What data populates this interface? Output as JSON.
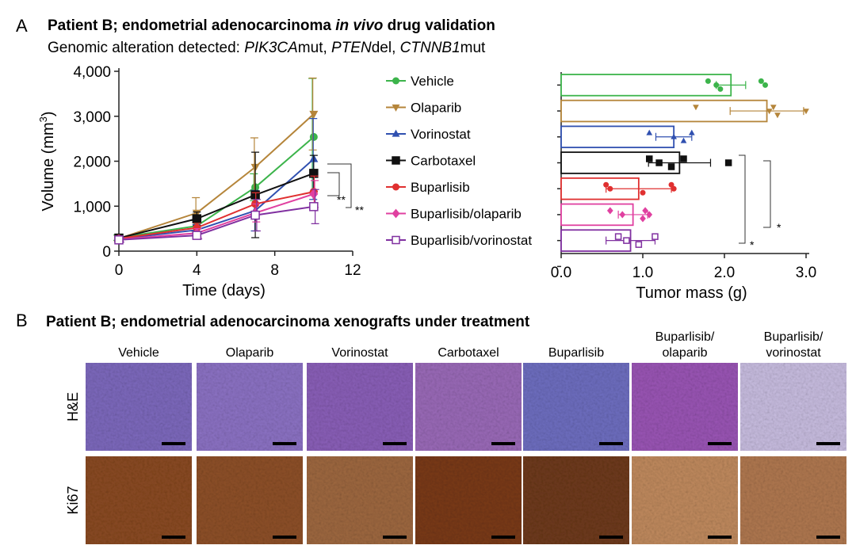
{
  "panel_a": {
    "label": "A",
    "title_parts": [
      "Patient B; endometrial adenocarcinoma ",
      "in vivo",
      " drug validation"
    ],
    "subtitle_parts": [
      "Genomic alteration detected: ",
      "PIK3CA",
      "mut, ",
      "PTEN",
      "del, ",
      "CTNNB1",
      "mut"
    ]
  },
  "chart_data": [
    {
      "type": "line",
      "x": [
        0,
        4,
        7,
        10
      ],
      "xlim": [
        0,
        12
      ],
      "xticks": [
        0,
        4,
        8,
        12
      ],
      "ylim": [
        0,
        4000
      ],
      "yticks": [
        0,
        {
          "value": 1000,
          "label": "1,000"
        },
        {
          "value": 2000,
          "label": "2,000"
        },
        {
          "value": 3000,
          "label": "3,000"
        },
        {
          "value": 4000,
          "label": "4,000"
        }
      ],
      "xlabel": "Time (days)",
      "ylabel_parts": [
        "Volume (mm",
        "3",
        ")"
      ],
      "annotations": [
        "**",
        "**"
      ],
      "series": [
        {
          "name": "Vehicle",
          "color": "#3cb44b",
          "marker": "circle",
          "values": [
            300,
            560,
            1420,
            2540
          ],
          "errors": [
            60,
            120,
            300,
            1300
          ]
        },
        {
          "name": "Olaparib",
          "color": "#b5853a",
          "marker": "tri-down",
          "values": [
            280,
            850,
            1870,
            3050
          ],
          "errors": [
            60,
            340,
            650,
            800
          ]
        },
        {
          "name": "Vorinostat",
          "color": "#3050b0",
          "marker": "tri-up",
          "values": [
            270,
            470,
            900,
            2050
          ],
          "errors": [
            50,
            120,
            450,
            900
          ]
        },
        {
          "name": "Carbotaxel",
          "color": "#111111",
          "marker": "square",
          "values": [
            290,
            720,
            1250,
            1730
          ],
          "errors": [
            50,
            150,
            950,
            400
          ]
        },
        {
          "name": "Buparlisib",
          "color": "#e03030",
          "marker": "circle",
          "values": [
            280,
            520,
            1050,
            1320
          ],
          "errors": [
            50,
            100,
            250,
            350
          ]
        },
        {
          "name": "Buparlisib/olaparib",
          "color": "#e040a0",
          "marker": "diamond",
          "values": [
            260,
            400,
            850,
            1270
          ],
          "errors": [
            50,
            100,
            200,
            300
          ]
        },
        {
          "name": "Buparlisib/vorinostat",
          "color": "#8030a0",
          "marker": "open-square",
          "values": [
            250,
            350,
            800,
            990
          ],
          "errors": [
            50,
            80,
            350,
            380
          ]
        }
      ]
    },
    {
      "type": "hbar",
      "values": [
        2.08,
        2.52,
        1.38,
        1.45,
        0.95,
        0.88,
        0.85
      ],
      "errors": [
        0.18,
        0.45,
        0.22,
        0.38,
        0.4,
        0.18,
        0.3
      ],
      "points": [
        [
          1.8,
          1.9,
          1.95,
          2.45,
          2.5
        ],
        [
          1.65,
          2.55,
          2.65,
          2.6,
          3.0
        ],
        [
          1.08,
          1.38,
          1.5,
          1.6
        ],
        [
          1.08,
          1.2,
          1.35,
          1.5,
          2.05
        ],
        [
          0.55,
          0.6,
          1.0,
          1.35,
          1.38
        ],
        [
          0.6,
          0.75,
          1.0,
          1.03,
          1.08
        ],
        [
          0.7,
          0.8,
          0.95,
          1.15
        ]
      ],
      "colors": [
        "#3cb44b",
        "#b5853a",
        "#3050b0",
        "#111111",
        "#e03030",
        "#e040a0",
        "#8030a0"
      ],
      "xlim": [
        0,
        3
      ],
      "xticks": [
        {
          "value": 0,
          "label": "0.0"
        },
        {
          "value": 1,
          "label": "1.0"
        },
        {
          "value": 2,
          "label": "2.0"
        },
        {
          "value": 3,
          "label": "3.0"
        }
      ],
      "xlabel": "Tumor mass (g)",
      "annotations": [
        "*",
        "*"
      ]
    }
  ],
  "panel_b": {
    "label": "B",
    "title": "Patient B; endometrial adenocarcinoma xenografts under treatment",
    "columns": [
      "Vehicle",
      "Olaparib",
      "Vorinostat",
      "Carbotaxel",
      "Buparlisib",
      "Buparlisib/\nolaparib",
      "Buparlisib/\nvorinostat"
    ],
    "rows": [
      "H&E",
      "Ki67"
    ]
  }
}
